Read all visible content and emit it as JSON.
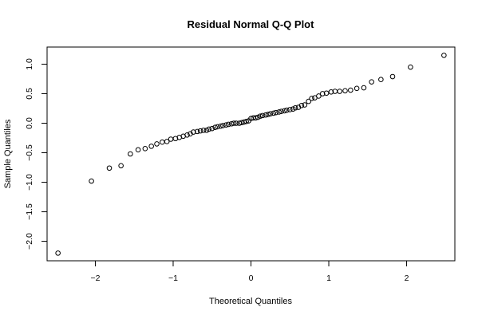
{
  "chart_data": {
    "type": "scatter",
    "title": "Residual Normal Q-Q Plot",
    "xlabel": "Theoretical Quantiles",
    "ylabel": "Sample Quantiles",
    "xlim": [
      -2.62,
      2.62
    ],
    "ylim": [
      -2.33,
      1.29
    ],
    "xticks": [
      -2,
      -1,
      0,
      1,
      2
    ],
    "xtick_labels": [
      "−2",
      "−1",
      "0",
      "1",
      "2"
    ],
    "yticks": [
      -2.0,
      -1.5,
      -1.0,
      -0.5,
      0.0,
      0.5,
      1.0
    ],
    "ytick_labels": [
      "−2.0",
      "−1.5",
      "−1.0",
      "−0.5",
      "0.0",
      "0.5",
      "1.0"
    ],
    "grid": false,
    "marker": "open-circle",
    "x": [
      -2.48,
      -2.05,
      -1.82,
      -1.67,
      -1.55,
      -1.45,
      -1.36,
      -1.28,
      -1.21,
      -1.14,
      -1.08,
      -1.03,
      -0.97,
      -0.92,
      -0.87,
      -0.82,
      -0.78,
      -0.74,
      -0.69,
      -0.65,
      -0.61,
      -0.57,
      -0.54,
      -0.5,
      -0.46,
      -0.43,
      -0.39,
      -0.36,
      -0.32,
      -0.29,
      -0.25,
      -0.22,
      -0.19,
      -0.15,
      -0.12,
      -0.09,
      -0.06,
      -0.03,
      0.0,
      0.03,
      0.06,
      0.09,
      0.12,
      0.15,
      0.19,
      0.22,
      0.25,
      0.29,
      0.32,
      0.36,
      0.39,
      0.43,
      0.46,
      0.5,
      0.54,
      0.57,
      0.61,
      0.65,
      0.69,
      0.74,
      0.78,
      0.82,
      0.87,
      0.92,
      0.97,
      1.03,
      1.08,
      1.14,
      1.21,
      1.28,
      1.36,
      1.45,
      1.55,
      1.67,
      1.82,
      2.05,
      2.48
    ],
    "y": [
      -2.2,
      -0.98,
      -0.76,
      -0.72,
      -0.52,
      -0.45,
      -0.43,
      -0.39,
      -0.35,
      -0.32,
      -0.31,
      -0.27,
      -0.26,
      -0.24,
      -0.22,
      -0.2,
      -0.18,
      -0.15,
      -0.14,
      -0.13,
      -0.12,
      -0.12,
      -0.1,
      -0.09,
      -0.07,
      -0.06,
      -0.05,
      -0.04,
      -0.03,
      -0.02,
      -0.01,
      0.0,
      0.0,
      0.0,
      0.01,
      0.02,
      0.03,
      0.04,
      0.08,
      0.09,
      0.09,
      0.1,
      0.12,
      0.13,
      0.14,
      0.15,
      0.16,
      0.17,
      0.18,
      0.19,
      0.2,
      0.21,
      0.22,
      0.23,
      0.24,
      0.26,
      0.27,
      0.3,
      0.31,
      0.37,
      0.42,
      0.43,
      0.46,
      0.5,
      0.51,
      0.53,
      0.54,
      0.54,
      0.55,
      0.56,
      0.59,
      0.6,
      0.7,
      0.74,
      0.79,
      0.95,
      1.15
    ]
  }
}
